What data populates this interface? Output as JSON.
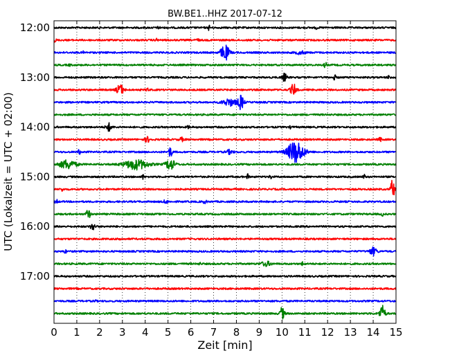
{
  "chart_data": {
    "type": "line",
    "title": "BW.BE1..HHZ 2017-07-12",
    "xlabel": "Zeit  [min]",
    "ylabel": "UTC (Lokalzeit = UTC + 02:00)",
    "xlim": [
      0,
      15
    ],
    "x_ticks": [
      0,
      1,
      2,
      3,
      4,
      5,
      6,
      7,
      8,
      9,
      10,
      11,
      12,
      13,
      14,
      15
    ],
    "x_tick_labels": [
      "0",
      "1",
      "2",
      "3",
      "4",
      "5",
      "6",
      "7",
      "8",
      "9",
      "10",
      "11",
      "12",
      "13",
      "14",
      "15"
    ],
    "y_tick_labels": [
      "12:00",
      "13:00",
      "14:00",
      "15:00",
      "16:00",
      "17:00"
    ],
    "y_tick_rows": [
      0,
      4,
      8,
      12,
      16,
      20
    ],
    "grid": "vertical dotted lines at every minute",
    "trace_colors": [
      "#000000",
      "#ff0000",
      "#0000ff",
      "#008000"
    ],
    "traces": [
      {
        "start": "12:00",
        "color": "#000000",
        "events": [
          {
            "t": 4.6,
            "amp": 0.3,
            "w": 0.05
          },
          {
            "t": 6.8,
            "amp": 0.6,
            "w": 0.03
          },
          {
            "t": 11.5,
            "amp": 0.25,
            "w": 0.05
          }
        ]
      },
      {
        "start": "12:15",
        "color": "#ff0000",
        "events": [
          {
            "t": 0.05,
            "amp": 0.4,
            "w": 0.04
          },
          {
            "t": 4.5,
            "amp": 0.25,
            "w": 0.05
          },
          {
            "t": 6.3,
            "amp": 0.3,
            "w": 0.05
          }
        ]
      },
      {
        "start": "12:30",
        "color": "#0000ff",
        "events": [
          {
            "t": 7.5,
            "amp": 1.6,
            "w": 0.18
          },
          {
            "t": 10.8,
            "amp": 0.3,
            "w": 0.2
          },
          {
            "t": 1.3,
            "amp": 0.2,
            "w": 0.05
          }
        ]
      },
      {
        "start": "12:45",
        "color": "#008000",
        "events": [
          {
            "t": 11.9,
            "amp": 0.6,
            "w": 0.05
          },
          {
            "t": 0.7,
            "amp": 0.2,
            "w": 0.05
          }
        ]
      },
      {
        "start": "13:00",
        "color": "#000000",
        "events": [
          {
            "t": 10.1,
            "amp": 0.8,
            "w": 0.1
          },
          {
            "t": 12.3,
            "amp": 0.6,
            "w": 0.05
          },
          {
            "t": 14.7,
            "amp": 0.5,
            "w": 0.05
          }
        ]
      },
      {
        "start": "13:15",
        "color": "#ff0000",
        "events": [
          {
            "t": 2.9,
            "amp": 1.1,
            "w": 0.15
          },
          {
            "t": 4.1,
            "amp": 0.4,
            "w": 0.05
          },
          {
            "t": 10.5,
            "amp": 1.2,
            "w": 0.12
          }
        ]
      },
      {
        "start": "13:30",
        "color": "#0000ff",
        "events": [
          {
            "t": 7.7,
            "amp": 0.7,
            "w": 0.3
          },
          {
            "t": 8.2,
            "amp": 1.4,
            "w": 0.12
          }
        ]
      },
      {
        "start": "13:45",
        "color": "#008000",
        "events": []
      },
      {
        "start": "14:00",
        "color": "#000000",
        "events": [
          {
            "t": 2.4,
            "amp": 0.8,
            "w": 0.12
          },
          {
            "t": 5.9,
            "amp": 0.3,
            "w": 0.05
          },
          {
            "t": 10.4,
            "amp": 0.35,
            "w": 0.05
          }
        ]
      },
      {
        "start": "14:15",
        "color": "#ff0000",
        "events": [
          {
            "t": 4.1,
            "amp": 0.5,
            "w": 0.12
          },
          {
            "t": 5.6,
            "amp": 0.35,
            "w": 0.1
          },
          {
            "t": 14.3,
            "amp": 0.4,
            "w": 0.06
          }
        ]
      },
      {
        "start": "14:30",
        "color": "#0000ff",
        "events": [
          {
            "t": 1.1,
            "amp": 0.7,
            "w": 0.04
          },
          {
            "t": 5.1,
            "amp": 1.0,
            "w": 0.08
          },
          {
            "t": 10.6,
            "amp": 2.3,
            "w": 0.35
          },
          {
            "t": 7.7,
            "amp": 0.4,
            "w": 0.15
          }
        ]
      },
      {
        "start": "14:45",
        "color": "#008000",
        "events": [
          {
            "t": 0.6,
            "amp": 0.9,
            "w": 0.35
          },
          {
            "t": 3.6,
            "amp": 1.0,
            "w": 0.5
          },
          {
            "t": 5.1,
            "amp": 1.1,
            "w": 0.2
          }
        ]
      },
      {
        "start": "15:00",
        "color": "#000000",
        "events": [
          {
            "t": 3.9,
            "amp": 0.45,
            "w": 0.04
          },
          {
            "t": 8.5,
            "amp": 0.6,
            "w": 0.04
          },
          {
            "t": 9.5,
            "amp": 0.4,
            "w": 0.05
          },
          {
            "t": 13.6,
            "amp": 0.6,
            "w": 0.04
          }
        ]
      },
      {
        "start": "15:15",
        "color": "#ff0000",
        "events": [
          {
            "t": 0.35,
            "amp": 0.5,
            "w": 0.04
          },
          {
            "t": 14.85,
            "amp": 2.1,
            "w": 0.08
          },
          {
            "t": 7.9,
            "amp": 0.3,
            "w": 0.04
          }
        ]
      },
      {
        "start": "15:30",
        "color": "#0000ff",
        "events": [
          {
            "t": 0.1,
            "amp": 0.5,
            "w": 0.05
          },
          {
            "t": 4.9,
            "amp": 0.3,
            "w": 0.1
          },
          {
            "t": 6.6,
            "amp": 0.25,
            "w": 0.1
          }
        ]
      },
      {
        "start": "15:45",
        "color": "#008000",
        "events": [
          {
            "t": 1.5,
            "amp": 1.1,
            "w": 0.08
          },
          {
            "t": 14.4,
            "amp": 0.35,
            "w": 0.04
          }
        ]
      },
      {
        "start": "16:00",
        "color": "#000000",
        "events": [
          {
            "t": 1.7,
            "amp": 0.7,
            "w": 0.1
          }
        ]
      },
      {
        "start": "16:15",
        "color": "#ff0000",
        "events": [
          {
            "t": 2.9,
            "amp": 0.25,
            "w": 0.05
          }
        ]
      },
      {
        "start": "16:30",
        "color": "#0000ff",
        "events": [
          {
            "t": 0.5,
            "amp": 0.4,
            "w": 0.04
          },
          {
            "t": 14.0,
            "amp": 0.8,
            "w": 0.15
          }
        ]
      },
      {
        "start": "16:45",
        "color": "#008000",
        "events": [
          {
            "t": 9.3,
            "amp": 0.45,
            "w": 0.2
          },
          {
            "t": 10.9,
            "amp": 0.4,
            "w": 0.04
          },
          {
            "t": 6.4,
            "amp": 0.2,
            "w": 0.05
          }
        ]
      },
      {
        "start": "17:00",
        "color": "#000000",
        "events": []
      },
      {
        "start": "17:15",
        "color": "#ff0000",
        "events": []
      },
      {
        "start": "17:30",
        "color": "#0000ff",
        "events": [
          {
            "t": 1.8,
            "amp": 0.35,
            "w": 0.04
          }
        ]
      },
      {
        "start": "17:45",
        "color": "#008000",
        "events": [
          {
            "t": 10.0,
            "amp": 1.2,
            "w": 0.1
          },
          {
            "t": 14.4,
            "amp": 1.6,
            "w": 0.12
          }
        ]
      }
    ]
  }
}
